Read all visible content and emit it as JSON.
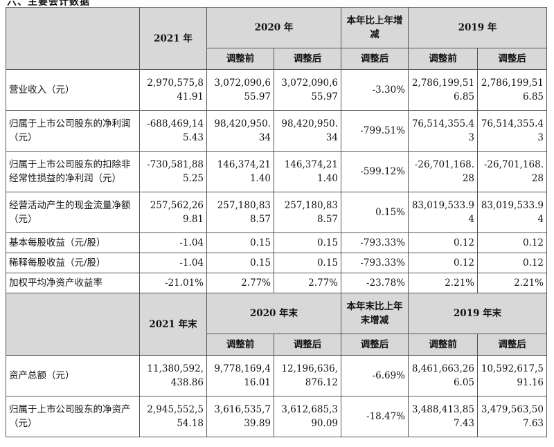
{
  "top_fragment": "六、主要会计数据",
  "section1": {
    "headers": {
      "y2021": "2021 年",
      "y2020": "2020 年",
      "change": "本年比上年增减",
      "y2019": "2019 年",
      "before": "调整前",
      "after": "调整后"
    },
    "rows": [
      {
        "label": "营业收入（元）",
        "v2021": "2,970,575,841.91",
        "v2020_before": "3,072,090,655.97",
        "v2020_after": "3,072,090,655.97",
        "change": "-3.30%",
        "v2019_before": "2,786,199,516.85",
        "v2019_after": "2,786,199,516.85"
      },
      {
        "label": "归属于上市公司股东的净利润（元）",
        "v2021": "-688,469,145.43",
        "v2020_before": "98,420,950.34",
        "v2020_after": "98,420,950.34",
        "change": "-799.51%",
        "v2019_before": "76,514,355.43",
        "v2019_after": "76,514,355.43"
      },
      {
        "label": "归属于上市公司股东的扣除非经常性损益的净利润（元）",
        "v2021": "-730,581,885.25",
        "v2020_before": "146,374,211.40",
        "v2020_after": "146,374,211.40",
        "change": "-599.12%",
        "v2019_before": "-26,701,168.28",
        "v2019_after": "-26,701,168.28"
      },
      {
        "label": "经营活动产生的现金流量净额（元）",
        "v2021": "257,562,269.81",
        "v2020_before": "257,180,838.57",
        "v2020_after": "257,180,838.57",
        "change": "0.15%",
        "v2019_before": "83,019,533.94",
        "v2019_after": "83,019,533.94"
      },
      {
        "label": "基本每股收益（元/股）",
        "v2021": "-1.04",
        "v2020_before": "0.15",
        "v2020_after": "0.15",
        "change": "-793.33%",
        "v2019_before": "0.12",
        "v2019_after": "0.12"
      },
      {
        "label": "稀释每股收益（元/股）",
        "v2021": "-1.04",
        "v2020_before": "0.15",
        "v2020_after": "0.15",
        "change": "-793.33%",
        "v2019_before": "0.12",
        "v2019_after": "0.12"
      },
      {
        "label": "加权平均净资产收益率",
        "v2021": "-21.01%",
        "v2020_before": "2.77%",
        "v2020_after": "2.77%",
        "change": "-23.78%",
        "v2019_before": "2.21%",
        "v2019_after": "2.21%"
      }
    ]
  },
  "section2": {
    "headers": {
      "y2021": "2021 年末",
      "y2020": "2020 年末",
      "change": "本年末比上年末增减",
      "y2019": "2019 年末",
      "before": "调整前",
      "after": "调整后"
    },
    "rows": [
      {
        "label": "资产总额（元）",
        "v2021": "11,380,592,438.86",
        "v2020_before": "9,778,169,416.01",
        "v2020_after": "12,196,636,876.12",
        "change": "-6.69%",
        "v2019_before": "8,461,663,266.05",
        "v2019_after": "10,592,617,591.16"
      },
      {
        "label": "归属于上市公司股东的净资产（元）",
        "v2021": "2,945,552,554.18",
        "v2020_before": "3,616,535,739.89",
        "v2020_after": "3,612,685,390.09",
        "change": "-18.47%",
        "v2019_before": "3,488,413,857.43",
        "v2019_after": "3,479,563,507.63"
      }
    ]
  }
}
